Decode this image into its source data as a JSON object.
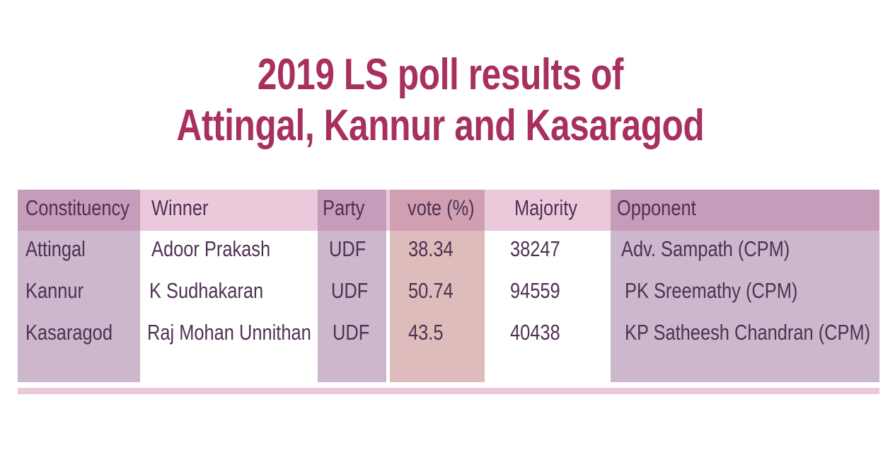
{
  "title": {
    "line1": "2019 LS poll results of",
    "line2": "Attingal, Kannur and Kasaragod"
  },
  "colors": {
    "title": "#a8305f",
    "text": "#4f3152",
    "header_dark": "#c59cb9",
    "header_light": "#eac9db",
    "header_vote": "#d0a0b2",
    "column_band": "#ccb7cd",
    "vote_band": "#dfbcbc"
  },
  "table": {
    "headers": {
      "constituency": "Constituency",
      "winner": "Winner",
      "party": "Party",
      "vote": "vote (%)",
      "majority": "Majority",
      "opponent": "Opponent"
    },
    "rows": [
      {
        "constituency": "Attingal",
        "winner": "Adoor Prakash",
        "party": "UDF",
        "vote": "38.34",
        "majority": "38247",
        "opponent": "Adv. Sampath (CPM)"
      },
      {
        "constituency": "Kannur",
        "winner": "K Sudhakaran",
        "party": "UDF",
        "vote": "50.74",
        "majority": "94559",
        "opponent": "PK Sreemathy (CPM)"
      },
      {
        "constituency": "Kasaragod",
        "winner": "Raj Mohan Unnithan",
        "party": "UDF",
        "vote": "43.5",
        "majority": "40438",
        "opponent": "KP Satheesh Chandran (CPM)"
      }
    ]
  }
}
